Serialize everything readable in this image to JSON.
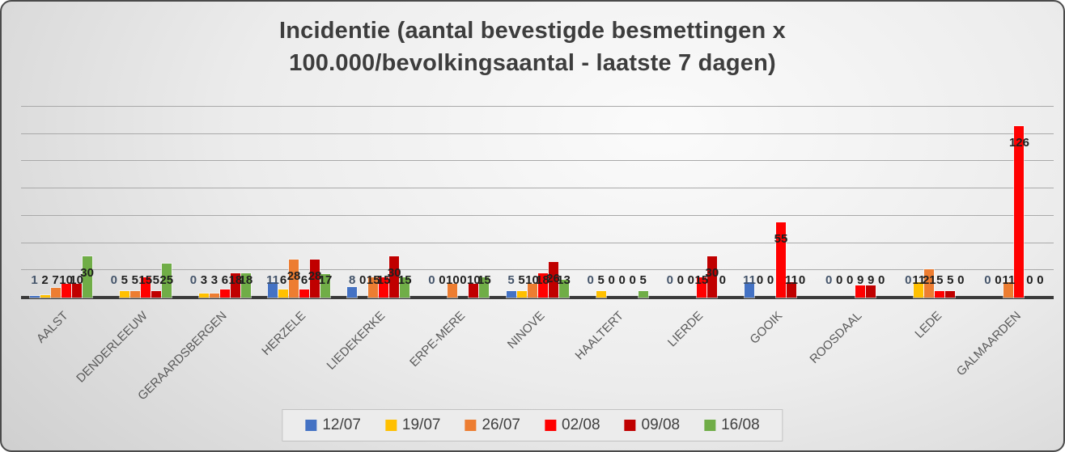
{
  "title": {
    "line1": "Incidentie (aantal bevestigde besmettingen x",
    "line2": "100.000/bevolkingsaantal - laatste 7 dagen)"
  },
  "chart_data": {
    "type": "bar",
    "title": "Incidentie (aantal bevestigde besmettingen x 100.000/bevolkingsaantal - laatste 7 dagen)",
    "xlabel": "",
    "ylabel": "",
    "ylim": [
      0,
      140
    ],
    "gridline_step": 20,
    "grid": true,
    "legend_position": "bottom",
    "data_labels": true,
    "categories": [
      "AALST",
      "DENDERLEEUW",
      "GERAARDSBERGEN",
      "HERZELE",
      "LIEDEKERKE",
      "ERPE-MERE",
      "NINOVE",
      "HAALTERT",
      "LIERDE",
      "GOOIK",
      "ROOSDAAL",
      "LEDE",
      "GALMAARDEN"
    ],
    "series": [
      {
        "name": "12/07",
        "color": "#4472C4",
        "label_color": "#44546A",
        "values": [
          1,
          0,
          0,
          11,
          8,
          0,
          5,
          0,
          0,
          11,
          0,
          0,
          0
        ]
      },
      {
        "name": "19/07",
        "color": "#FFC000",
        "label_color": "#1f1f1f",
        "values": [
          2,
          5,
          3,
          6,
          0,
          0,
          5,
          5,
          0,
          0,
          0,
          11,
          0
        ]
      },
      {
        "name": "26/07",
        "color": "#ED7D31",
        "label_color": "#1f1f1f",
        "values": [
          7,
          5,
          3,
          28,
          15,
          10,
          10,
          0,
          0,
          0,
          0,
          21,
          11
        ]
      },
      {
        "name": "02/08",
        "color": "#FF0000",
        "label_color": "#1f1f1f",
        "values": [
          10,
          15,
          6,
          6,
          15,
          0,
          18,
          0,
          15,
          55,
          9,
          5,
          126
        ]
      },
      {
        "name": "09/08",
        "color": "#C00000",
        "label_color": "#1f1f1f",
        "values": [
          10,
          5,
          18,
          28,
          30,
          10,
          26,
          0,
          30,
          11,
          9,
          5,
          0
        ]
      },
      {
        "name": "16/08",
        "color": "#70AD47",
        "label_color": "#1f1f1f",
        "values": [
          30,
          25,
          18,
          17,
          15,
          15,
          13,
          5,
          0,
          0,
          0,
          0,
          0
        ]
      }
    ]
  }
}
